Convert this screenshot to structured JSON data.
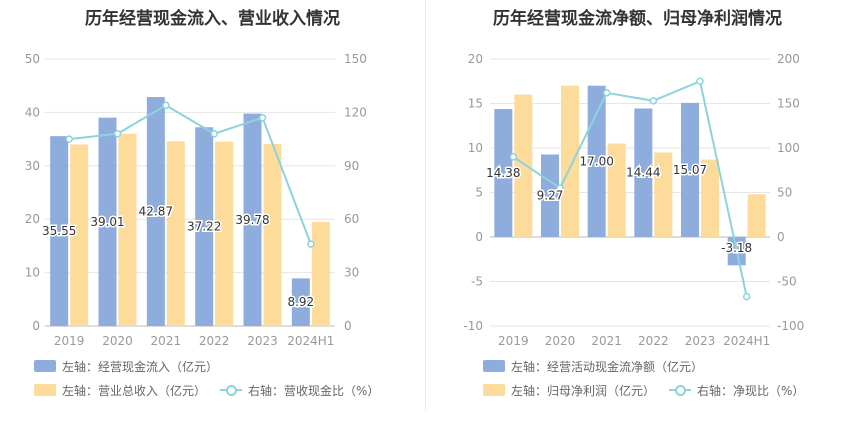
{
  "colors": {
    "bar_primary": "#8eacdc",
    "bar_secondary": "#fddb9b",
    "line": "#8dd3de",
    "axis": "#999999",
    "grid": "#e6e6e6",
    "label": "#333333"
  },
  "left": {
    "title": "历年经营现金流入、营业收入情况",
    "legend": {
      "s1": "左轴：经营现金流入（亿元）",
      "s2": "左轴：营业总收入（亿元）",
      "s3": "右轴：营收现金比（%）"
    }
  },
  "right": {
    "title": "历年经营现金流净额、归母净利润情况",
    "legend": {
      "s1": "左轴：经营活动现金流净额（亿元）",
      "s2": "左轴：归母净利润（亿元）",
      "s3": "右轴：净现比（%）"
    }
  },
  "chart_data": [
    {
      "type": "bar",
      "title": "历年经营现金流入、营业收入情况",
      "categories": [
        "2019",
        "2020",
        "2021",
        "2022",
        "2023",
        "2024H1"
      ],
      "ylim_left": [
        0,
        50
      ],
      "yticks_left": [
        0,
        10,
        20,
        30,
        40,
        50
      ],
      "ylim_right": [
        0,
        150
      ],
      "yticks_right": [
        0,
        30,
        60,
        90,
        120,
        150
      ],
      "series": [
        {
          "name": "左轴：经营现金流入（亿元）",
          "axis": "left",
          "kind": "bar",
          "values": [
            35.55,
            39.01,
            42.87,
            37.22,
            39.78,
            8.92
          ],
          "labels": [
            "35.55",
            "39.01",
            "42.87",
            "37.22",
            "39.78",
            "8.92"
          ]
        },
        {
          "name": "左轴：营业总收入（亿元）",
          "axis": "left",
          "kind": "bar",
          "values": [
            34.0,
            36.0,
            34.6,
            34.5,
            34.1,
            19.5
          ]
        },
        {
          "name": "右轴：营收现金比（%）",
          "axis": "right",
          "kind": "line",
          "values": [
            105,
            108,
            124,
            108,
            117,
            46
          ]
        }
      ]
    },
    {
      "type": "bar",
      "title": "历年经营现金流净额、归母净利润情况",
      "categories": [
        "2019",
        "2020",
        "2021",
        "2022",
        "2023",
        "2024H1"
      ],
      "ylim_left": [
        -10,
        20
      ],
      "yticks_left": [
        -10,
        -5,
        0,
        5,
        10,
        15,
        20
      ],
      "ylim_right": [
        -100,
        200
      ],
      "yticks_right": [
        -100,
        -50,
        0,
        50,
        100,
        150,
        200
      ],
      "series": [
        {
          "name": "左轴：经营活动现金流净额（亿元）",
          "axis": "left",
          "kind": "bar",
          "values": [
            14.38,
            9.27,
            17.0,
            14.44,
            15.07,
            -3.18
          ],
          "labels": [
            "14.38",
            "9.27",
            "17.00",
            "14.44",
            "15.07",
            "-3.18"
          ]
        },
        {
          "name": "左轴：归母净利润（亿元）",
          "axis": "left",
          "kind": "bar",
          "values": [
            16.0,
            17.0,
            10.5,
            9.5,
            8.7,
            4.8
          ]
        },
        {
          "name": "右轴：净现比（%）",
          "axis": "right",
          "kind": "line",
          "values": [
            90,
            55,
            162,
            153,
            175,
            -67
          ]
        }
      ]
    }
  ]
}
